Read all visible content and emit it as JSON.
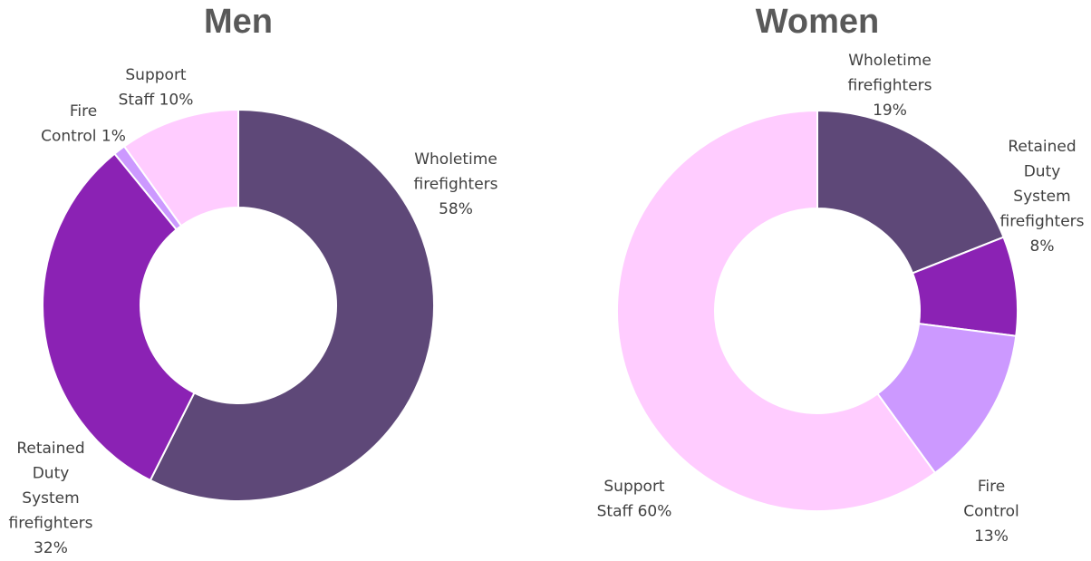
{
  "chart_data": [
    {
      "type": "pie",
      "title": "Men",
      "slices": [
        {
          "label_lines": [
            "Wholetime",
            "firefighters",
            "58%"
          ],
          "value": 58,
          "color": "#5E4878"
        },
        {
          "label_lines": [
            "Retained",
            "Duty",
            "System",
            "firefighters",
            "32%"
          ],
          "value": 32,
          "color": "#8B22B4"
        },
        {
          "label_lines": [
            "Fire",
            "Control 1%"
          ],
          "value": 1,
          "color": "#CC99FF"
        },
        {
          "label_lines": [
            "Support",
            "Staff 10%"
          ],
          "value": 10,
          "color": "#FFCCFF"
        }
      ]
    },
    {
      "type": "pie",
      "title": "Women",
      "slices": [
        {
          "label_lines": [
            "Wholetime",
            "firefighters",
            "19%"
          ],
          "value": 19,
          "color": "#5E4878"
        },
        {
          "label_lines": [
            "Retained",
            "Duty",
            "System",
            "firefighters",
            "8%"
          ],
          "value": 8,
          "color": "#8B22B4"
        },
        {
          "label_lines": [
            "Fire",
            "Control",
            "13%"
          ],
          "value": 13,
          "color": "#CC99FF"
        },
        {
          "label_lines": [
            "Support",
            "Staff 60%"
          ],
          "value": 60,
          "color": "#FFCCFF"
        }
      ]
    }
  ]
}
